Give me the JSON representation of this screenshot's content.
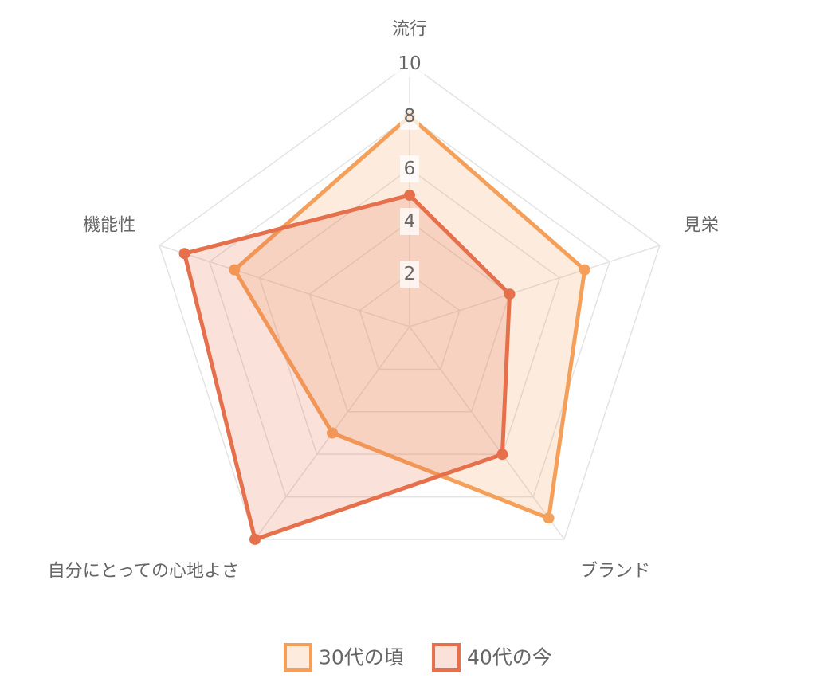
{
  "chart_data": {
    "type": "radar",
    "axes": [
      "流行",
      "見栄",
      "ブランド",
      "自分にとっての心地よさ",
      "機能性"
    ],
    "r_ticks": [
      "2",
      "4",
      "6",
      "8",
      "10"
    ],
    "r_range": [
      0,
      10
    ],
    "grid": true,
    "legend_position": "bottom",
    "series": [
      {
        "name": "30代の頃",
        "values": [
          8,
          7,
          9,
          5,
          7
        ],
        "color": "#F4A05A",
        "fill": "rgba(244,160,90,0.20)"
      },
      {
        "name": "40代の今",
        "values": [
          5,
          4,
          6,
          10,
          9
        ],
        "color": "#E5704B",
        "fill": "rgba(229,112,75,0.20)"
      }
    ]
  }
}
